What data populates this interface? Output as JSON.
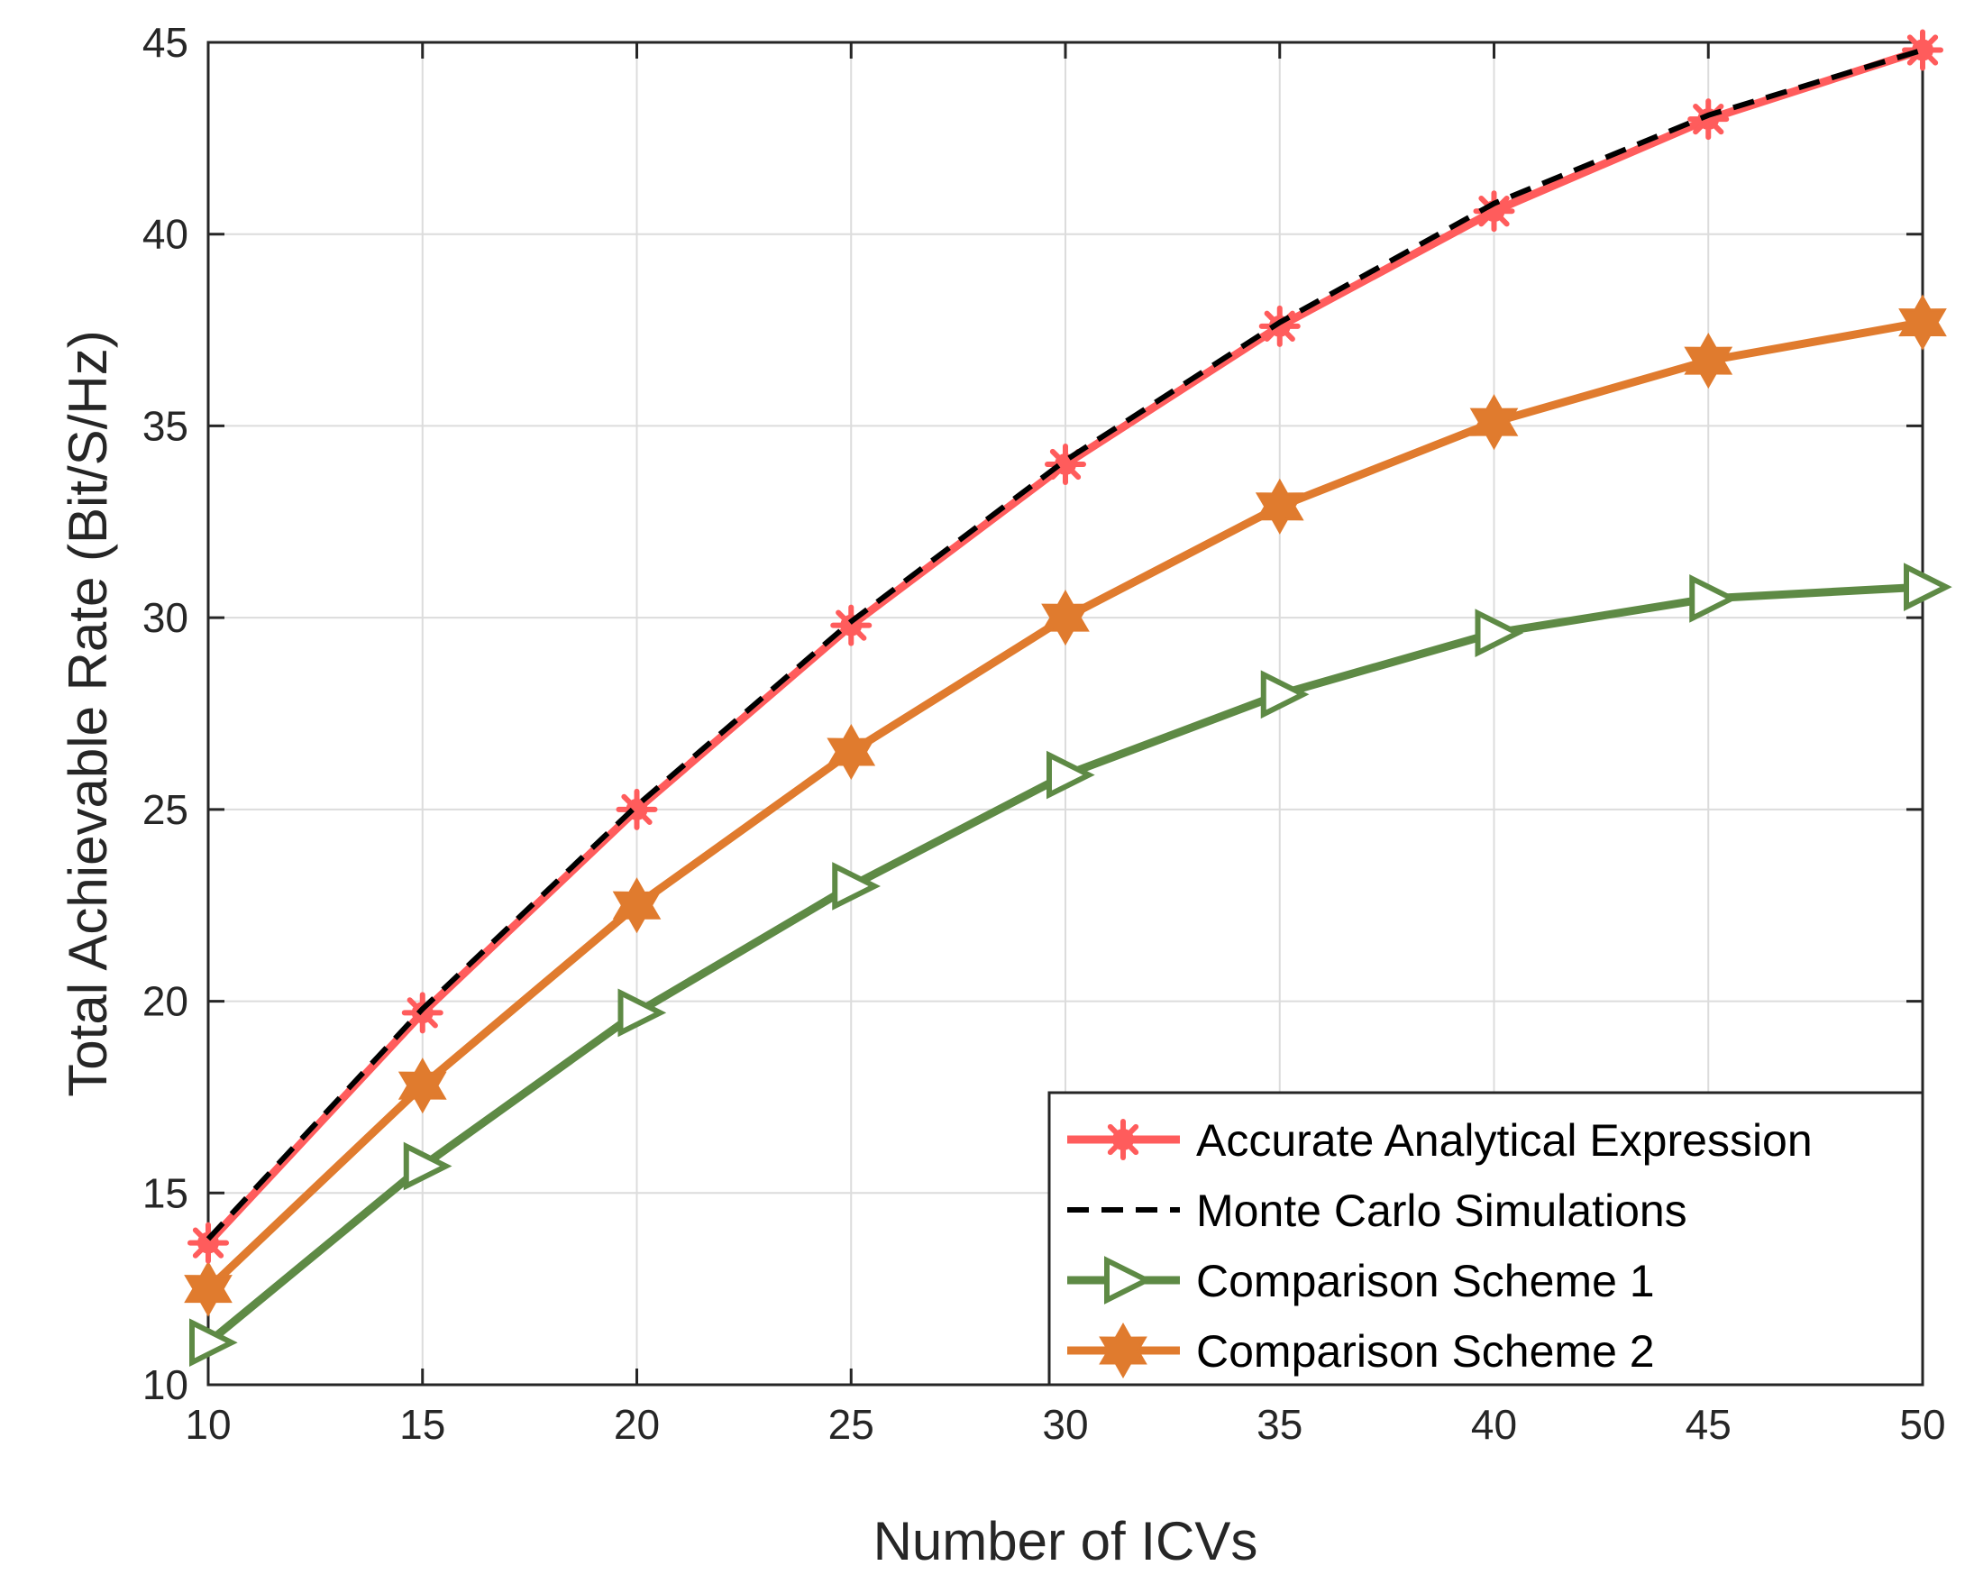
{
  "chart_data": {
    "type": "line",
    "title": "",
    "xlabel": "Number of ICVs",
    "ylabel": "Total Achievable Rate (Bit/S/Hz)",
    "xlim": [
      10,
      50
    ],
    "ylim": [
      10,
      45
    ],
    "xticks": [
      "10",
      "15",
      "20",
      "25",
      "30",
      "35",
      "40",
      "45",
      "50"
    ],
    "yticks": [
      "10",
      "15",
      "20",
      "25",
      "30",
      "35",
      "40",
      "45"
    ],
    "grid": true,
    "legend_position": "bottom-right",
    "x": [
      10,
      15,
      20,
      25,
      30,
      35,
      40,
      45,
      50
    ],
    "series": [
      {
        "name": "Accurate Analytical Expression",
        "color": "#ff5c5c",
        "marker": "asterisk-circle",
        "line": "solid",
        "values": [
          13.7,
          19.7,
          25.0,
          29.8,
          34.0,
          37.6,
          40.6,
          43.0,
          44.8
        ]
      },
      {
        "name": "Monte Carlo Simulations",
        "color": "#000000",
        "marker": "none",
        "line": "dashed",
        "values": [
          13.8,
          19.8,
          25.1,
          29.9,
          34.1,
          37.7,
          40.8,
          43.1,
          44.8
        ]
      },
      {
        "name": "Comparison Scheme 1",
        "color": "#5e8a45",
        "marker": "triangle-right",
        "line": "solid",
        "values": [
          11.1,
          15.7,
          19.7,
          23.0,
          25.9,
          28.0,
          29.6,
          30.5,
          30.8
        ]
      },
      {
        "name": "Comparison Scheme 2",
        "color": "#e07b2e",
        "marker": "hexagram",
        "line": "solid",
        "values": [
          12.5,
          17.8,
          22.5,
          26.5,
          30.0,
          32.9,
          35.1,
          36.7,
          37.7
        ]
      }
    ]
  }
}
